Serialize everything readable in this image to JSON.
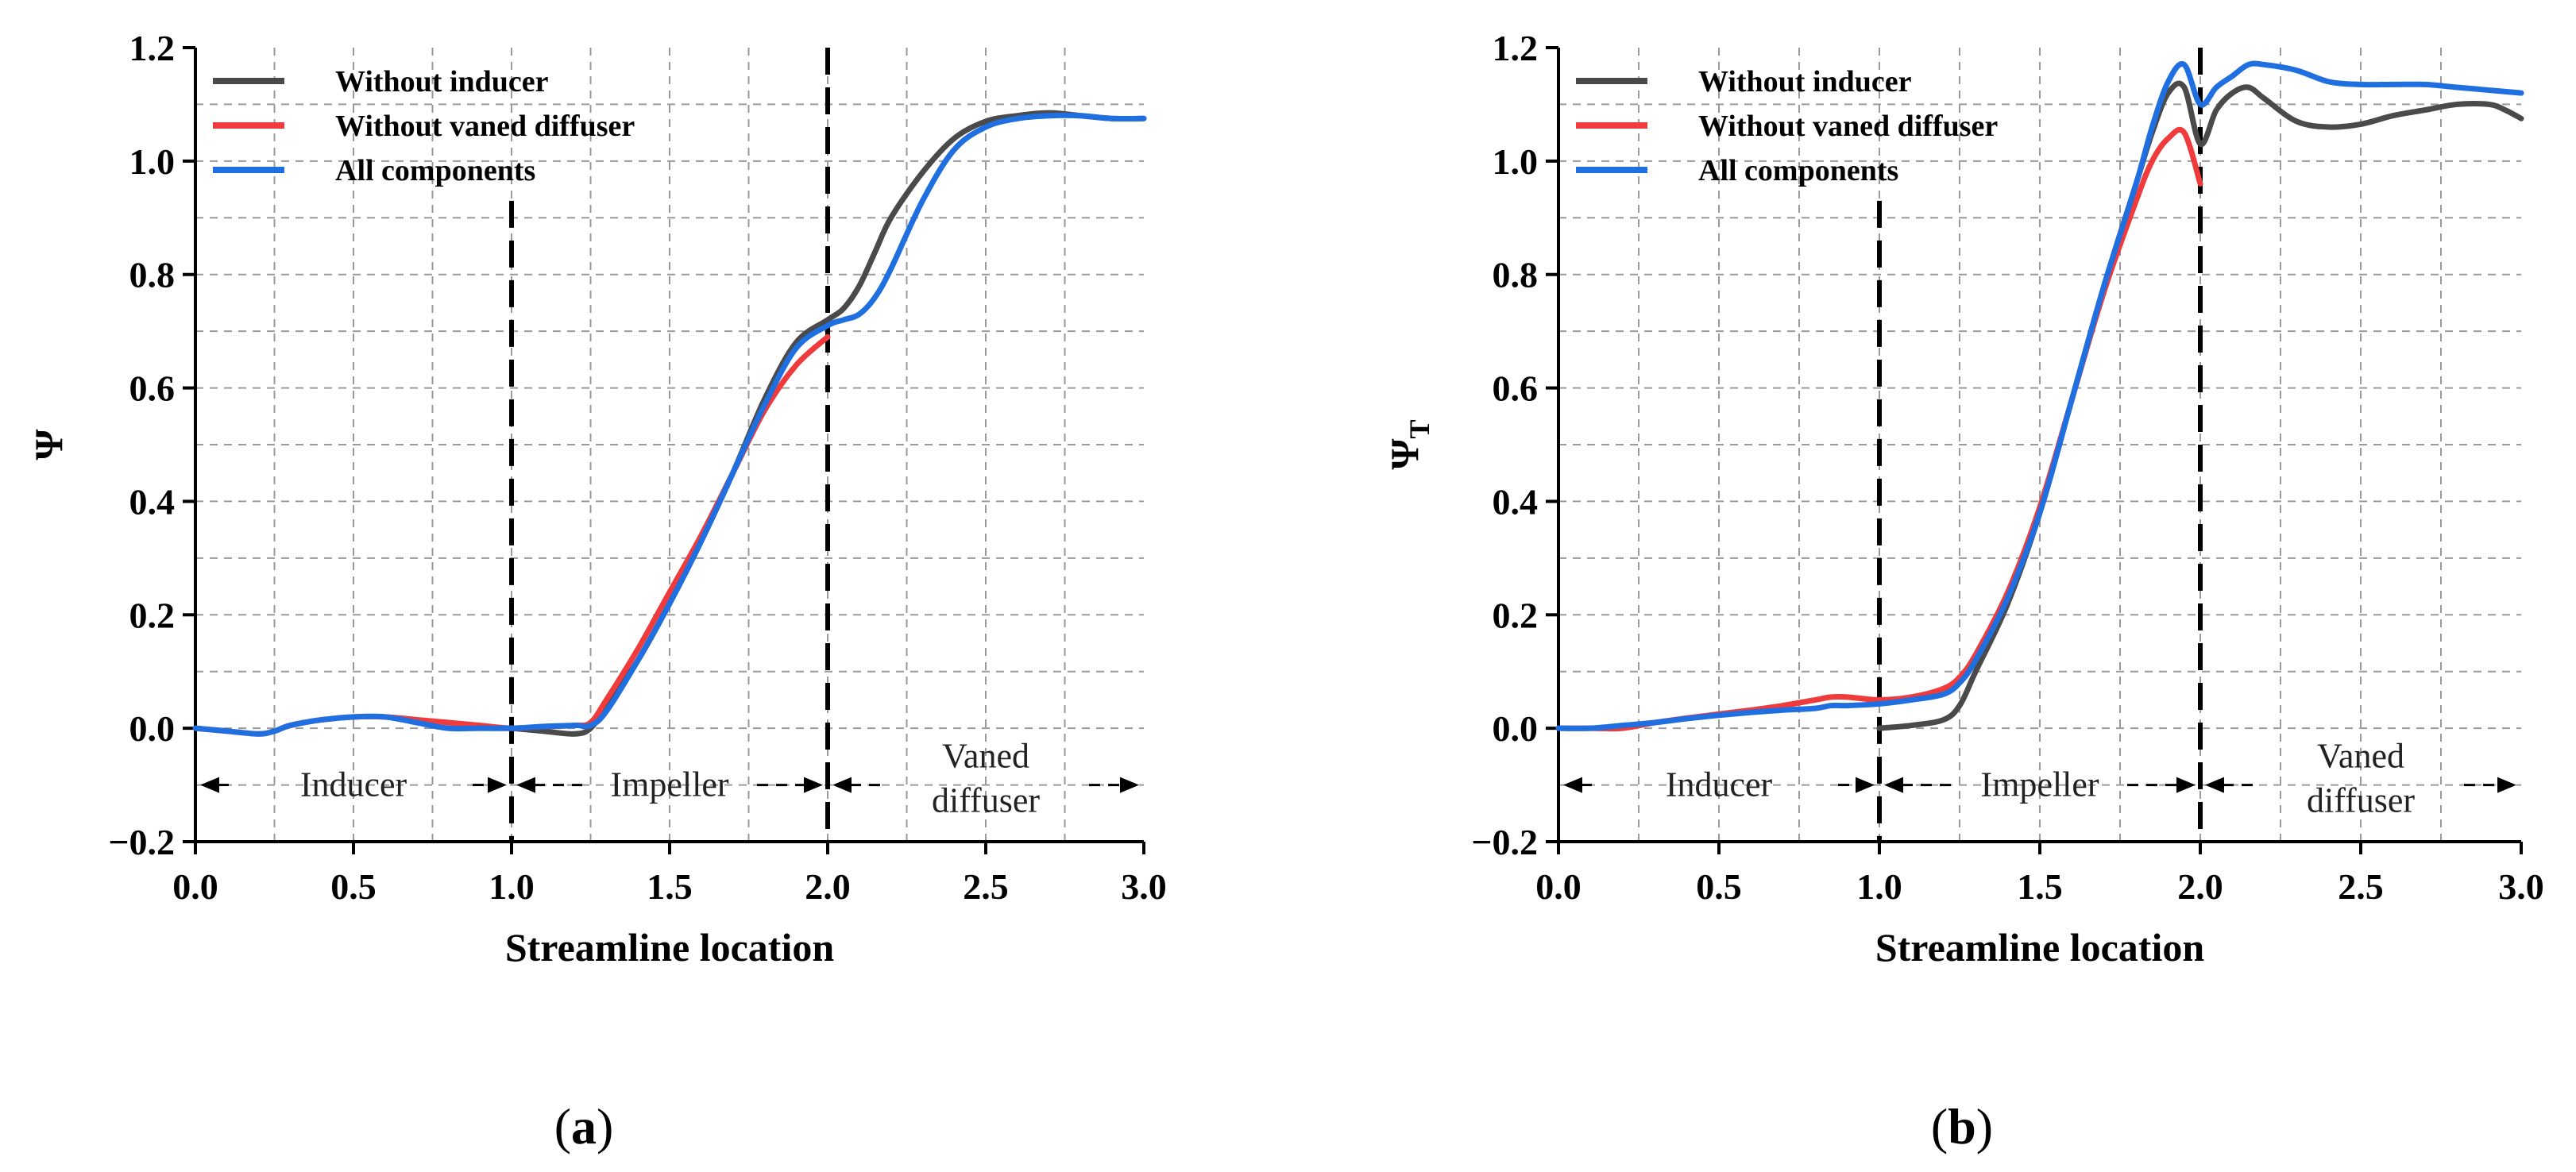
{
  "colors": {
    "without_inducer": "#4a4a4a",
    "without_vaned_diffuser": "#ef3b3b",
    "all_components": "#1f6fe0",
    "grid": "#9a9a9a",
    "axis": "#000000"
  },
  "chart_data": [
    {
      "panel": "(a)",
      "panel_letter": "a",
      "type": "line",
      "xlabel": "Streamline location",
      "ylabel": "Ψ",
      "ylabel_sub": "",
      "xlim": [
        0.0,
        3.0
      ],
      "ylim": [
        -0.2,
        1.2
      ],
      "xticks": [
        "0.0",
        "0.5",
        "1.0",
        "1.5",
        "2.0",
        "2.5",
        "3.0"
      ],
      "yticks": [
        "−0.2",
        "0.0",
        "0.2",
        "0.4",
        "0.6",
        "0.8",
        "1.0",
        "1.2"
      ],
      "grid": true,
      "legend_position": "top-left",
      "dividers": [
        1.0,
        2.0
      ],
      "regions": [
        {
          "label_lines": [
            "Inducer"
          ],
          "from": 0.0,
          "to": 1.0
        },
        {
          "label_lines": [
            "Impeller"
          ],
          "from": 1.0,
          "to": 2.0
        },
        {
          "label_lines": [
            "Vaned",
            "diffuser"
          ],
          "from": 2.0,
          "to": 3.0
        }
      ],
      "series": [
        {
          "name": "Without inducer",
          "color_key": "without_inducer",
          "x": [
            1.0,
            1.1,
            1.2,
            1.25,
            1.3,
            1.4,
            1.5,
            1.6,
            1.7,
            1.8,
            1.9,
            2.0,
            2.05,
            2.1,
            2.15,
            2.2,
            2.3,
            2.4,
            2.5,
            2.6,
            2.7,
            2.8,
            2.9,
            3.0
          ],
          "y": [
            0.0,
            -0.005,
            -0.01,
            0.0,
            0.04,
            0.12,
            0.22,
            0.33,
            0.45,
            0.58,
            0.68,
            0.72,
            0.74,
            0.78,
            0.84,
            0.9,
            0.98,
            1.04,
            1.07,
            1.08,
            1.085,
            1.08,
            1.075,
            1.075
          ]
        },
        {
          "name": "Without vaned diffuser",
          "color_key": "without_vaned_diffuser",
          "x": [
            0.0,
            0.1,
            0.2,
            0.25,
            0.3,
            0.4,
            0.5,
            0.6,
            0.7,
            0.8,
            0.9,
            1.0,
            1.1,
            1.2,
            1.25,
            1.3,
            1.4,
            1.5,
            1.6,
            1.7,
            1.8,
            1.9,
            2.0
          ],
          "y": [
            0.0,
            -0.005,
            -0.01,
            -0.005,
            0.005,
            0.015,
            0.02,
            0.02,
            0.015,
            0.01,
            0.005,
            0.0,
            0.003,
            0.005,
            0.01,
            0.05,
            0.14,
            0.24,
            0.34,
            0.45,
            0.56,
            0.64,
            0.69
          ]
        },
        {
          "name": "All components",
          "color_key": "all_components",
          "x": [
            0.0,
            0.1,
            0.2,
            0.25,
            0.3,
            0.4,
            0.5,
            0.6,
            0.7,
            0.8,
            0.9,
            1.0,
            1.1,
            1.2,
            1.25,
            1.3,
            1.4,
            1.5,
            1.6,
            1.7,
            1.8,
            1.9,
            2.0,
            2.05,
            2.1,
            2.15,
            2.2,
            2.3,
            2.4,
            2.5,
            2.6,
            2.7,
            2.8,
            2.9,
            3.0
          ],
          "y": [
            0.0,
            -0.005,
            -0.01,
            -0.005,
            0.005,
            0.015,
            0.02,
            0.02,
            0.01,
            0.0,
            0.0,
            0.0,
            0.003,
            0.005,
            0.005,
            0.03,
            0.12,
            0.22,
            0.33,
            0.45,
            0.57,
            0.67,
            0.71,
            0.72,
            0.73,
            0.76,
            0.81,
            0.93,
            1.02,
            1.06,
            1.075,
            1.08,
            1.08,
            1.075,
            1.075
          ]
        }
      ]
    },
    {
      "panel": "(b)",
      "panel_letter": "b",
      "type": "line",
      "xlabel": "Streamline location",
      "ylabel": "Ψ",
      "ylabel_sub": "T",
      "xlim": [
        0.0,
        3.0
      ],
      "ylim": [
        -0.2,
        1.2
      ],
      "xticks": [
        "0.0",
        "0.5",
        "1.0",
        "1.5",
        "2.0",
        "2.5",
        "3.0"
      ],
      "yticks": [
        "−0.2",
        "0.0",
        "0.2",
        "0.4",
        "0.6",
        "0.8",
        "1.0",
        "1.2"
      ],
      "grid": true,
      "legend_position": "top-left",
      "dividers": [
        1.0,
        2.0
      ],
      "regions": [
        {
          "label_lines": [
            "Inducer"
          ],
          "from": 0.0,
          "to": 1.0
        },
        {
          "label_lines": [
            "Impeller"
          ],
          "from": 1.0,
          "to": 2.0
        },
        {
          "label_lines": [
            "Vaned",
            "diffuser"
          ],
          "from": 2.0,
          "to": 3.0
        }
      ],
      "series": [
        {
          "name": "Without inducer",
          "color_key": "without_inducer",
          "x": [
            1.0,
            1.1,
            1.2,
            1.25,
            1.3,
            1.4,
            1.5,
            1.6,
            1.7,
            1.8,
            1.85,
            1.9,
            1.95,
            2.0,
            2.05,
            2.1,
            2.15,
            2.2,
            2.3,
            2.4,
            2.5,
            2.6,
            2.7,
            2.8,
            2.9,
            2.95,
            3.0
          ],
          "y": [
            0.0,
            0.005,
            0.015,
            0.04,
            0.1,
            0.22,
            0.38,
            0.58,
            0.78,
            0.96,
            1.05,
            1.12,
            1.13,
            1.03,
            1.09,
            1.12,
            1.13,
            1.11,
            1.07,
            1.06,
            1.065,
            1.08,
            1.09,
            1.1,
            1.1,
            1.09,
            1.075
          ]
        },
        {
          "name": "Without vaned diffuser",
          "color_key": "without_vaned_diffuser",
          "x": [
            0.0,
            0.1,
            0.2,
            0.3,
            0.4,
            0.5,
            0.6,
            0.7,
            0.8,
            0.85,
            0.9,
            1.0,
            1.1,
            1.2,
            1.25,
            1.3,
            1.4,
            1.5,
            1.6,
            1.7,
            1.8,
            1.85,
            1.9,
            1.95,
            2.0
          ],
          "y": [
            0.0,
            0.0,
            0.0,
            0.01,
            0.018,
            0.025,
            0.032,
            0.04,
            0.05,
            0.055,
            0.055,
            0.05,
            0.055,
            0.07,
            0.09,
            0.13,
            0.24,
            0.39,
            0.58,
            0.77,
            0.93,
            1.0,
            1.04,
            1.05,
            0.96
          ]
        },
        {
          "name": "All components",
          "color_key": "all_components",
          "x": [
            0.0,
            0.1,
            0.2,
            0.3,
            0.4,
            0.5,
            0.6,
            0.7,
            0.8,
            0.85,
            0.9,
            1.0,
            1.1,
            1.2,
            1.25,
            1.3,
            1.4,
            1.5,
            1.6,
            1.7,
            1.8,
            1.85,
            1.9,
            1.95,
            2.0,
            2.05,
            2.1,
            2.15,
            2.2,
            2.3,
            2.4,
            2.5,
            2.6,
            2.7,
            2.8,
            2.9,
            3.0
          ],
          "y": [
            0.0,
            0.0,
            0.005,
            0.01,
            0.017,
            0.023,
            0.028,
            0.032,
            0.035,
            0.04,
            0.04,
            0.043,
            0.05,
            0.06,
            0.08,
            0.12,
            0.23,
            0.38,
            0.58,
            0.78,
            0.96,
            1.06,
            1.14,
            1.17,
            1.1,
            1.13,
            1.15,
            1.17,
            1.17,
            1.16,
            1.14,
            1.135,
            1.135,
            1.135,
            1.13,
            1.125,
            1.12
          ]
        }
      ]
    }
  ]
}
